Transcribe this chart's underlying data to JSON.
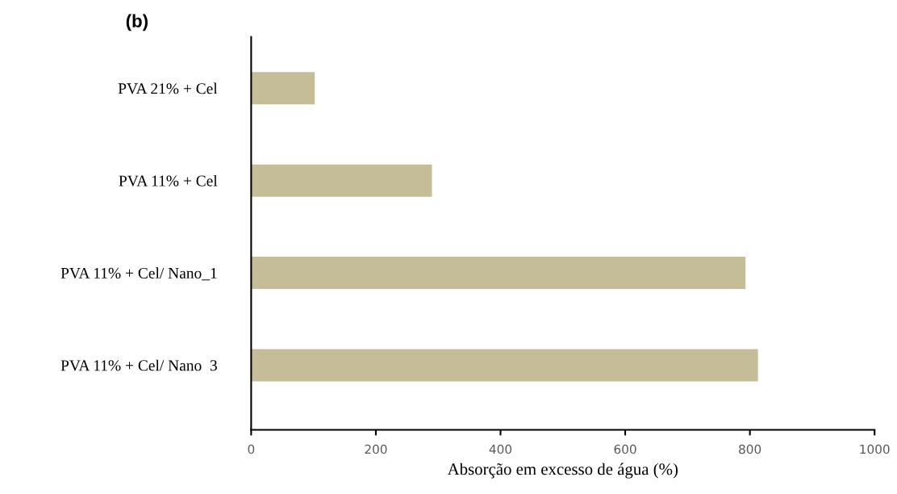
{
  "chart_data": {
    "type": "bar",
    "orientation": "horizontal",
    "title": "(b)",
    "xlabel": "Absorção em excesso de água (%)",
    "categories": [
      "PVA 21% + Cel",
      "PVA 11% + Cel",
      "PVA 11% + Cel/ Nano_1",
      "PVA 11% + Cel/ Nano  3"
    ],
    "values": [
      102,
      290,
      793,
      813
    ],
    "color": "#c4bd97",
    "xlim": [
      0,
      1000
    ],
    "xticks": [
      0,
      200,
      400,
      600,
      800,
      1000
    ],
    "grid": false,
    "legend": false
  }
}
